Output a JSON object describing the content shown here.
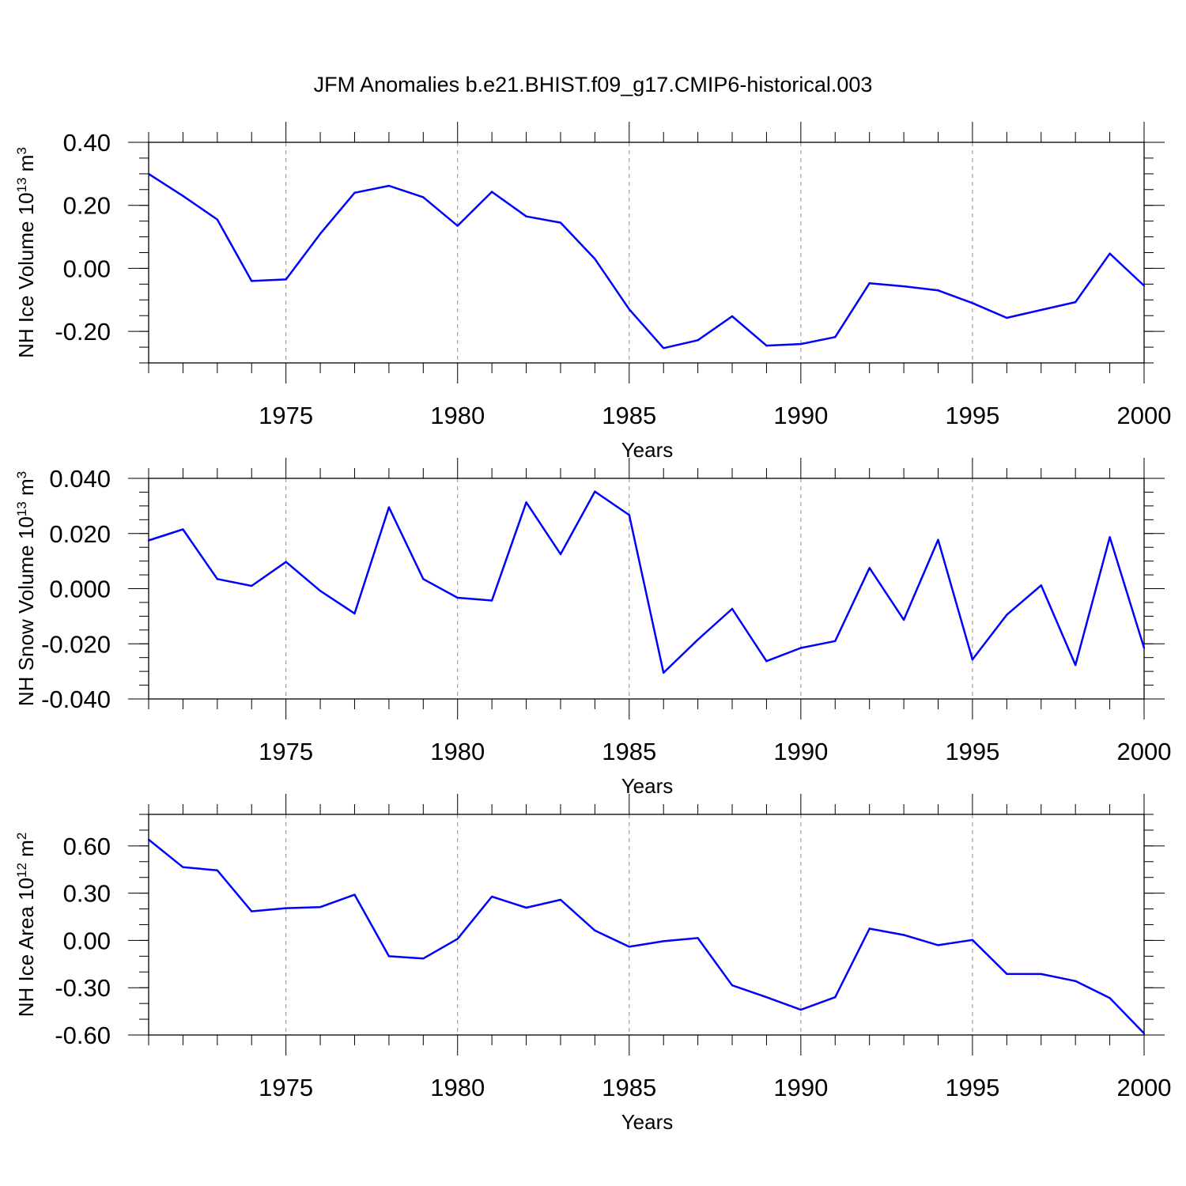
{
  "title": "JFM Anomalies b.e21.BHIST.f09_g17.CMIP6-historical.003",
  "chart_data": [
    {
      "type": "line",
      "xlabel": "Years",
      "ylabel": {
        "prefix": "NH Ice Volume 10",
        "exp": "13",
        "unit": " m",
        "unit_exp": "3"
      },
      "xlim": [
        1971,
        2000
      ],
      "ylim": [
        -0.3,
        0.4
      ],
      "xticks": [
        1975,
        1980,
        1985,
        1990,
        1995,
        2000
      ],
      "yticks": [
        0.4,
        0.2,
        0.0,
        -0.2
      ],
      "ytick_labels": [
        "0.40",
        "0.20",
        "0.00",
        "-0.20"
      ],
      "y_minor_step": 0.05,
      "color": "#0000ff",
      "x": [
        1971,
        1972,
        1973,
        1974,
        1975,
        1976,
        1977,
        1978,
        1979,
        1980,
        1981,
        1982,
        1983,
        1984,
        1985,
        1986,
        1987,
        1988,
        1989,
        1990,
        1991,
        1992,
        1993,
        1994,
        1995,
        1996,
        1997,
        1998,
        1999,
        2000
      ],
      "y": [
        0.3,
        0.23,
        0.155,
        -0.04,
        -0.035,
        0.11,
        0.24,
        0.262,
        0.226,
        0.135,
        0.243,
        0.165,
        0.145,
        0.03,
        -0.13,
        -0.253,
        -0.228,
        -0.152,
        -0.245,
        -0.24,
        -0.218,
        -0.047,
        -0.057,
        -0.07,
        -0.11,
        -0.157,
        -0.132,
        -0.107,
        0.047,
        -0.055
      ]
    },
    {
      "type": "line",
      "xlabel": "Years",
      "ylabel": {
        "prefix": "NH Snow Volume 10",
        "exp": "13",
        "unit": " m",
        "unit_exp": "3"
      },
      "xlim": [
        1971,
        2000
      ],
      "ylim": [
        -0.04,
        0.04
      ],
      "xticks": [
        1975,
        1980,
        1985,
        1990,
        1995,
        2000
      ],
      "yticks": [
        0.04,
        0.02,
        0.0,
        -0.02,
        -0.04
      ],
      "ytick_labels": [
        "0.040",
        "0.020",
        "0.000",
        "-0.020",
        "-0.040"
      ],
      "y_minor_step": 0.005,
      "color": "#0000ff",
      "x": [
        1971,
        1972,
        1973,
        1974,
        1975,
        1976,
        1977,
        1978,
        1979,
        1980,
        1981,
        1982,
        1983,
        1984,
        1985,
        1986,
        1987,
        1988,
        1989,
        1990,
        1991,
        1992,
        1993,
        1994,
        1995,
        1996,
        1997,
        1998,
        1999,
        2000
      ],
      "y": [
        0.0175,
        0.0215,
        0.0035,
        0.001,
        0.0097,
        -0.0008,
        -0.009,
        0.0295,
        0.0035,
        -0.0033,
        -0.0043,
        0.0313,
        0.0125,
        0.0352,
        0.0267,
        -0.0305,
        -0.0185,
        -0.0073,
        -0.0263,
        -0.0215,
        -0.019,
        0.0075,
        -0.0113,
        0.0177,
        -0.0257,
        -0.0095,
        0.0012,
        -0.0277,
        0.0187,
        -0.0215
      ]
    },
    {
      "type": "line",
      "xlabel": "Years",
      "ylabel": {
        "prefix": "NH Ice Area 10",
        "exp": "12",
        "unit": " m",
        "unit_exp": "2"
      },
      "xlim": [
        1971,
        2000
      ],
      "ylim": [
        -0.6,
        0.8
      ],
      "xticks": [
        1975,
        1980,
        1985,
        1990,
        1995,
        2000
      ],
      "yticks": [
        0.6,
        0.3,
        0.0,
        -0.3,
        -0.6
      ],
      "ytick_labels": [
        "0.60",
        "0.30",
        "0.00",
        "-0.30",
        "-0.60"
      ],
      "y_minor_step": 0.1,
      "color": "#0000ff",
      "x": [
        1971,
        1972,
        1973,
        1974,
        1975,
        1976,
        1977,
        1978,
        1979,
        1980,
        1981,
        1982,
        1983,
        1984,
        1985,
        1986,
        1987,
        1988,
        1989,
        1990,
        1991,
        1992,
        1993,
        1994,
        1995,
        1996,
        1997,
        1998,
        1999,
        2000
      ],
      "y": [
        0.64,
        0.465,
        0.445,
        0.185,
        0.205,
        0.212,
        0.29,
        -0.1,
        -0.115,
        0.01,
        0.278,
        0.208,
        0.258,
        0.063,
        -0.04,
        -0.005,
        0.015,
        -0.285,
        -0.36,
        -0.44,
        -0.36,
        0.075,
        0.035,
        -0.03,
        0.003,
        -0.212,
        -0.213,
        -0.258,
        -0.365,
        -0.59
      ]
    }
  ]
}
